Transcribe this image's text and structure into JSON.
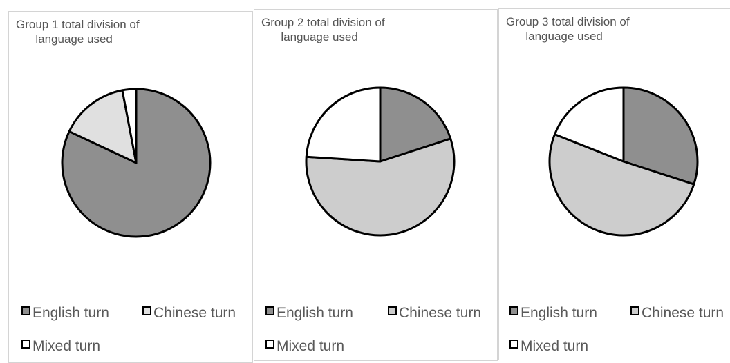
{
  "legend": {
    "english": "English turn",
    "chinese": "Chinese turn",
    "mixed": "Mixed turn"
  },
  "colors": {
    "english": "#8f8f8f",
    "chinese": "#cdcdcd",
    "mixed": "#ffffff",
    "group1_chinese": "#e0e0e0",
    "outline": "#000000"
  },
  "chart_data": [
    {
      "type": "pie",
      "title": "Group 1 total division of\n      language used",
      "categories": [
        "English turn",
        "Chinese turn",
        "Mixed turn"
      ],
      "values": [
        82,
        15,
        3
      ]
    },
    {
      "type": "pie",
      "title": "Group 2 total division of\n      language used",
      "categories": [
        "English turn",
        "Chinese turn",
        "Mixed turn"
      ],
      "values": [
        20,
        56,
        24
      ]
    },
    {
      "type": "pie",
      "title": "Group 3 total division of\n      language used",
      "categories": [
        "English turn",
        "Chinese turn",
        "Mixed turn"
      ],
      "values": [
        30,
        51,
        19
      ]
    }
  ]
}
